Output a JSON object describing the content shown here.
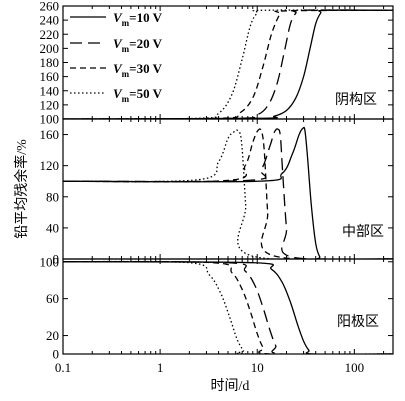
{
  "chart_data": [
    {
      "type": "line",
      "panel_label": "阴构区",
      "xscale": "log",
      "xlim": [
        0.1,
        250
      ],
      "ylim": [
        100,
        260
      ],
      "yticks": [
        100,
        120,
        140,
        160,
        180,
        200,
        220,
        240,
        260
      ],
      "series": [
        {
          "name": "Vm=10 V",
          "style": "solid",
          "x": [
            0.1,
            10,
            15,
            20,
            25,
            30,
            35,
            40,
            45,
            50,
            250
          ],
          "y": [
            100,
            101,
            104,
            112,
            130,
            160,
            200,
            235,
            250,
            254,
            254
          ]
        },
        {
          "name": "Vm=20 V",
          "style": "longdash",
          "x": [
            0.1,
            6,
            10,
            13,
            16,
            19,
            22,
            25,
            28,
            250
          ],
          "y": [
            100,
            101,
            106,
            120,
            150,
            195,
            235,
            250,
            254,
            254
          ]
        },
        {
          "name": "Vm=30 V",
          "style": "dash",
          "x": [
            0.1,
            4,
            6.5,
            9,
            11.5,
            14,
            17,
            19,
            250
          ],
          "y": [
            100,
            101,
            108,
            130,
            175,
            220,
            248,
            253,
            254
          ]
        },
        {
          "name": "Vm=50 V",
          "style": "dot",
          "x": [
            0.1,
            2.5,
            4,
            5.5,
            7,
            8.5,
            10,
            12,
            250
          ],
          "y": [
            100,
            101,
            108,
            135,
            185,
            232,
            250,
            254,
            254
          ]
        }
      ]
    },
    {
      "type": "line",
      "panel_label": "中部区",
      "xscale": "log",
      "xlim": [
        0.1,
        250
      ],
      "ylim": [
        0,
        180
      ],
      "yticks": [
        0,
        40,
        80,
        120,
        160
      ],
      "series": [
        {
          "name": "Vm=10 V",
          "style": "solid",
          "x": [
            0.1,
            10,
            18,
            23,
            27,
            29.5,
            31,
            33,
            36,
            40,
            44,
            48,
            250
          ],
          "y": [
            100,
            100,
            110,
            135,
            160,
            168,
            165,
            130,
            70,
            20,
            3,
            0,
            0
          ]
        },
        {
          "name": "Vm=20 V",
          "style": "longdash",
          "x": [
            0.1,
            8,
            11,
            13.5,
            15,
            16.3,
            17.3,
            18.3,
            20,
            22,
            250
          ],
          "y": [
            100,
            101,
            115,
            145,
            163,
            167,
            158,
            110,
            40,
            3,
            0
          ]
        },
        {
          "name": "Vm=30 V",
          "style": "dash",
          "x": [
            0.1,
            5,
            7.5,
            9,
            10,
            11,
            11.8,
            12.8,
            14,
            250
          ],
          "y": [
            100,
            101,
            120,
            150,
            164,
            165,
            140,
            60,
            5,
            0
          ]
        },
        {
          "name": "Vm=50 V",
          "style": "dot",
          "x": [
            0.1,
            2.5,
            4,
            5,
            5.7,
            6.3,
            6.9,
            7.6,
            8.3,
            250
          ],
          "y": [
            100,
            102,
            125,
            155,
            163,
            165,
            150,
            70,
            5,
            0
          ]
        }
      ]
    },
    {
      "type": "line",
      "panel_label": "阳极区",
      "xscale": "log",
      "xlim": [
        0.1,
        250
      ],
      "ylim": [
        0,
        103
      ],
      "yticks": [
        0,
        20,
        60,
        100
      ],
      "series": [
        {
          "name": "Vm=10 V",
          "style": "solid",
          "x": [
            0.1,
            9,
            14,
            18,
            22,
            26,
            30,
            34,
            38,
            250
          ],
          "y": [
            100,
            99,
            92,
            78,
            56,
            32,
            14,
            4,
            0,
            0
          ]
        },
        {
          "name": "Vm=20 V",
          "style": "longdash",
          "x": [
            0.1,
            5,
            7.5,
            9.5,
            11.5,
            13.5,
            15.5,
            18,
            250
          ],
          "y": [
            100,
            99,
            90,
            74,
            50,
            26,
            9,
            0,
            0
          ]
        },
        {
          "name": "Vm=30 V",
          "style": "dash",
          "x": [
            0.1,
            3.5,
            5.5,
            7,
            8.5,
            10,
            11.5,
            13.5,
            250
          ],
          "y": [
            100,
            99,
            88,
            70,
            46,
            22,
            7,
            0,
            0
          ]
        },
        {
          "name": "Vm=50 V",
          "style": "dot",
          "x": [
            0.1,
            2,
            3.2,
            4.2,
            5.2,
            6.2,
            7.2,
            8.2,
            250
          ],
          "y": [
            100,
            99,
            86,
            66,
            40,
            16,
            4,
            0,
            0
          ]
        }
      ]
    }
  ],
  "legend": {
    "placement": "top-left of top panel",
    "entries": [
      {
        "prefix": "V",
        "sub": "m",
        "suffix": "=10 V",
        "style": "solid"
      },
      {
        "prefix": "V",
        "sub": "m",
        "suffix": "=20 V",
        "style": "longdash"
      },
      {
        "prefix": "V",
        "sub": "m",
        "suffix": "=30 V",
        "style": "dash"
      },
      {
        "prefix": "V",
        "sub": "m",
        "suffix": "=50 V",
        "style": "dot"
      }
    ]
  },
  "x_ticks": [
    {
      "value": 0.1,
      "label": "0.1"
    },
    {
      "value": 1,
      "label": "1"
    },
    {
      "value": 10,
      "label": "10"
    },
    {
      "value": 100,
      "label": "100"
    }
  ],
  "xlabel": "时间/d",
  "ylabel": "铅平均残余率/%"
}
